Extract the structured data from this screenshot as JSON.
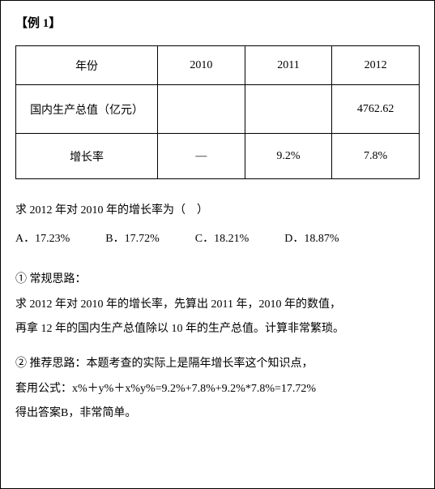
{
  "title": "【例 1】",
  "table": {
    "headers": [
      "年份",
      "2010",
      "2011",
      "2012"
    ],
    "rows": [
      {
        "label": "国内生产总值（亿元）",
        "cells": [
          "",
          "",
          "4762.62"
        ]
      },
      {
        "label": "增长率",
        "cells": [
          "—",
          "9.2%",
          "7.8%"
        ]
      }
    ]
  },
  "question": "求 2012 年对 2010 年的增长率为（　）",
  "options": [
    "A．17.23%",
    "B．17.72%",
    "C．18.21%",
    "D．18.87%"
  ],
  "explanation1": {
    "heading": "① 常规思路：",
    "line1": "求 2012 年对 2010 年的增长率，先算出 2011 年，2010 年的数值，",
    "line2": "再拿 12 年的国内生产总值除以 10 年的生产总值。计算非常繁琐。"
  },
  "explanation2": {
    "heading": "② 推荐思路：本题考查的实际上是隔年增长率这个知识点，",
    "line1": "套用公式：x%＋y%＋x%y%=9.2%+7.8%+9.2%*7.8%=17.72%",
    "line2": "得出答案B，非常简单。"
  }
}
